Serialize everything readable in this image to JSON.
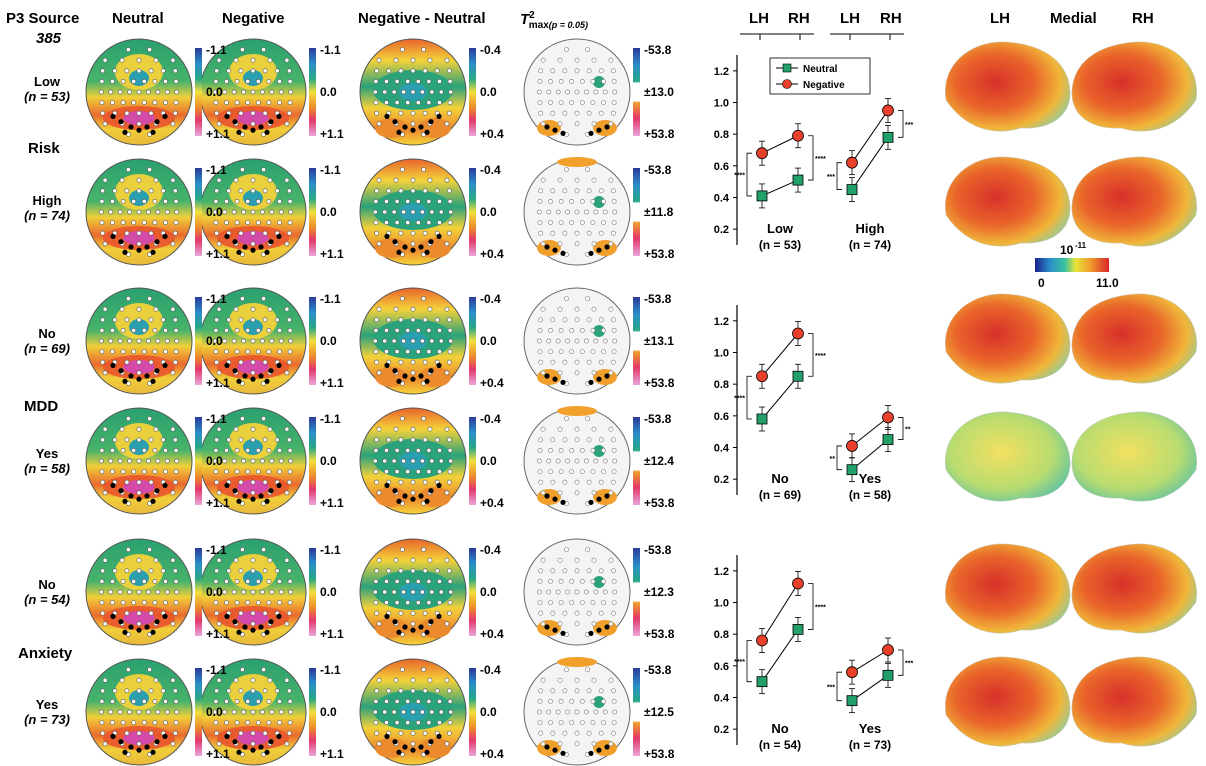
{
  "header": {
    "source_title": "P3 Source",
    "source_number": "385",
    "col_neutral": "Neutral",
    "col_negative": "Negative",
    "col_diff": "Negative - Neutral",
    "col_tmax": "T",
    "col_tmax_sup": "2",
    "col_tmax_sub": "max",
    "col_tmax_p": "(p = 0.05)",
    "hemi_lh": "LH",
    "hemi_rh": "RH",
    "brain_lh": "LH",
    "brain_medial": "Medial",
    "brain_rh": "RH"
  },
  "groups": [
    {
      "name": "Risk",
      "rows": [
        {
          "label": "Low",
          "n": "(n = 53)"
        },
        {
          "label": "High",
          "n": "(n = 74)"
        }
      ]
    },
    {
      "name": "MDD",
      "rows": [
        {
          "label": "No",
          "n": "(n = 69)"
        },
        {
          "label": "Yes",
          "n": "(n = 58)"
        }
      ]
    },
    {
      "name": "Anxiety",
      "rows": [
        {
          "label": "No",
          "n": "(n = 54)"
        },
        {
          "label": "Yes",
          "n": "(n = 73)"
        }
      ]
    }
  ],
  "scales": {
    "topo": {
      "top": "-1.1",
      "mid": "0.0",
      "bot": "+1.1"
    },
    "diff": {
      "top": "-0.4",
      "mid": "0.0",
      "bot": "+0.4"
    },
    "tmax": [
      {
        "top": "-53.8",
        "mid": "±13.0",
        "bot": "+53.8"
      },
      {
        "top": "-53.8",
        "mid": "±11.8",
        "bot": "+53.8"
      },
      {
        "top": "-53.8",
        "mid": "±13.1",
        "bot": "+53.8"
      },
      {
        "top": "-53.8",
        "mid": "±12.4",
        "bot": "+53.8"
      },
      {
        "top": "-53.8",
        "mid": "±12.3",
        "bot": "+53.8"
      },
      {
        "top": "-53.8",
        "mid": "±12.5",
        "bot": "+53.8"
      }
    ]
  },
  "brain_colorbar": {
    "unit": "10",
    "unit_exp": "-11",
    "min": "0",
    "max": "11.0"
  },
  "chart_data": [
    {
      "type": "line",
      "yticks": [
        "1.2",
        "1.0",
        "0.8",
        "0.6",
        "0.4",
        "0.2"
      ],
      "ylim": [
        0.1,
        1.3
      ],
      "legend": [
        "Neutral",
        "Negative"
      ],
      "legend_position": "top-center",
      "panels": [
        {
          "label": "Low",
          "n": "(n = 53)",
          "neutral": [
            0.41,
            0.51
          ],
          "negative": [
            0.68,
            0.79
          ],
          "sig_lh": "****",
          "sig_rh": "****"
        },
        {
          "label": "High",
          "n": "(n = 74)",
          "neutral": [
            0.45,
            0.78
          ],
          "negative": [
            0.62,
            0.95
          ],
          "sig_lh": "***",
          "sig_rh": "***"
        }
      ]
    },
    {
      "type": "line",
      "yticks": [
        "1.2",
        "1.0",
        "0.8",
        "0.6",
        "0.4",
        "0.2"
      ],
      "ylim": [
        0.1,
        1.3
      ],
      "panels": [
        {
          "label": "No",
          "n": "(n = 69)",
          "neutral": [
            0.58,
            0.85
          ],
          "negative": [
            0.85,
            1.12
          ],
          "sig_lh": "****",
          "sig_rh": "****"
        },
        {
          "label": "Yes",
          "n": "(n = 58)",
          "neutral": [
            0.26,
            0.45
          ],
          "negative": [
            0.41,
            0.59
          ],
          "sig_lh": "**",
          "sig_rh": "**"
        }
      ]
    },
    {
      "type": "line",
      "yticks": [
        "1.2",
        "1.0",
        "0.8",
        "0.6",
        "0.4",
        "0.2"
      ],
      "ylim": [
        0.1,
        1.3
      ],
      "panels": [
        {
          "label": "No",
          "n": "(n = 54)",
          "neutral": [
            0.5,
            0.83
          ],
          "negative": [
            0.76,
            1.12
          ],
          "sig_lh": "****",
          "sig_rh": "****"
        },
        {
          "label": "Yes",
          "n": "(n = 73)",
          "neutral": [
            0.38,
            0.54
          ],
          "negative": [
            0.56,
            0.7
          ],
          "sig_lh": "***",
          "sig_rh": "***"
        }
      ]
    }
  ],
  "colors": {
    "neutral": "#21a06a",
    "negative": "#e8402a",
    "green": "#2aa27a",
    "yellow": "#f2d23a",
    "red": "#e05a2e",
    "magenta": "#d44aa8",
    "teal": "#2a9fb0"
  }
}
